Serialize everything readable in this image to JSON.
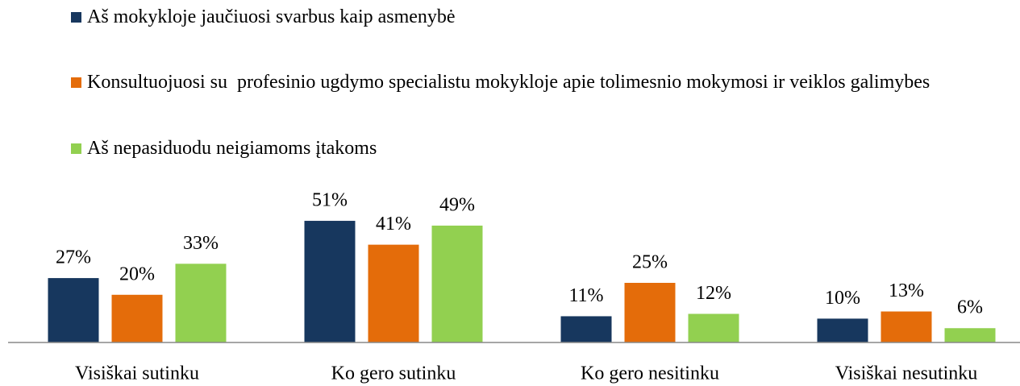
{
  "chart_data": {
    "type": "bar",
    "categories": [
      "Visiškai sutinku",
      "Ko gero sutinku",
      "Ko gero nesitinku",
      "Visiškai nesutinku"
    ],
    "series": [
      {
        "name": "Aš mokykloje jaučiuosi svarbus kaip asmenybė",
        "color": "#17375e",
        "values": [
          27,
          51,
          11,
          10
        ],
        "value_labels": [
          "27%",
          "51%",
          "11%",
          "10%"
        ]
      },
      {
        "name": "Konsultuojuosi su  profesinio ugdymo specialistu mokykloje apie tolimesnio mokymosi ir veiklos galimybes",
        "color": "#e46c0a",
        "values": [
          20,
          41,
          25,
          13
        ],
        "value_labels": [
          "20%",
          "41%",
          "25%",
          "13%"
        ]
      },
      {
        "name": "Aš nepasiduodu neigiamoms įtakoms",
        "color": "#92d050",
        "values": [
          33,
          49,
          12,
          6
        ],
        "value_labels": [
          "33%",
          "49%",
          "12%",
          "6%"
        ]
      }
    ],
    "legend": "top-left"
  }
}
